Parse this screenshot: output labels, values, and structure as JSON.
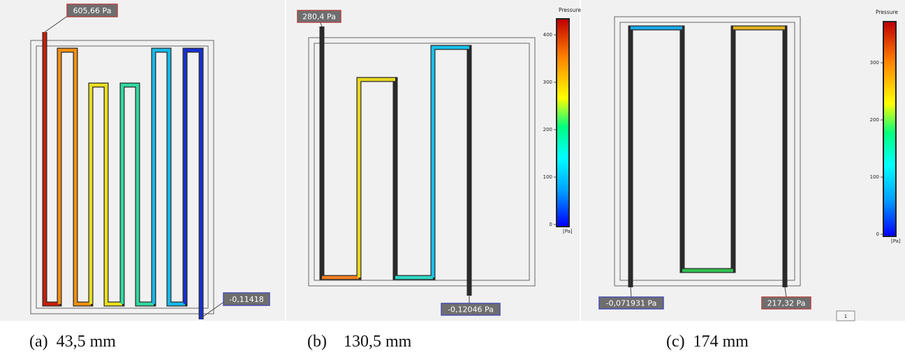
{
  "panels": [
    {
      "id": "a",
      "caption": "(a)  43,5 mm",
      "max_label": "605,66 Pa",
      "min_label": "-0,11418"
    },
    {
      "id": "b",
      "caption": "(b)    130,5 mm",
      "max_label": "280,4 Pa",
      "min_label": "-0,12046 Pa",
      "legend": {
        "title": "Pressure",
        "unit": "[Pa]",
        "ticks": [
          "400",
          "300",
          "200",
          "100",
          "0"
        ]
      }
    },
    {
      "id": "c",
      "caption": "(c)  174 mm",
      "max_label": "217,32 Pa",
      "min_label": "-0,071931 Pa",
      "legend": {
        "title": "Pressure",
        "unit": "[Pa]",
        "ticks": [
          "300",
          "200",
          "100",
          "0"
        ]
      },
      "corner_box": "1"
    }
  ],
  "colors": {
    "max_box": "#b04545",
    "min_box": "#4a4fb0",
    "frame": "#666666",
    "colormap": [
      "#0000ff",
      "#00a0ff",
      "#00ffff",
      "#00ff80",
      "#ffff00",
      "#ff8000",
      "#c00000"
    ]
  }
}
